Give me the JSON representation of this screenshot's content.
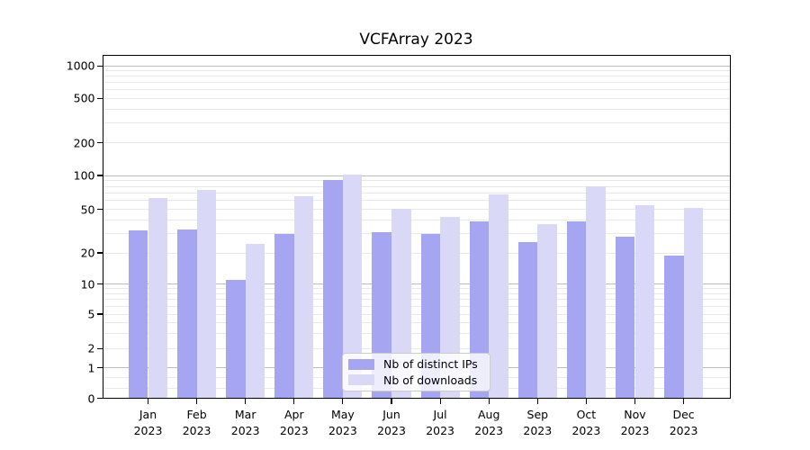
{
  "chart_data": {
    "type": "bar",
    "title": "VCFArray 2023",
    "categories": [
      "Jan 2023",
      "Feb 2023",
      "Mar 2023",
      "Apr 2023",
      "May 2023",
      "Jun 2023",
      "Jul 2023",
      "Aug 2023",
      "Sep 2023",
      "Oct 2023",
      "Nov 2023",
      "Dec 2023"
    ],
    "series": [
      {
        "name": "Nb of distinct IPs",
        "color": "#a5a5f1",
        "values": [
          32,
          33,
          11,
          30,
          91,
          31,
          30,
          39,
          25,
          39,
          28,
          19
        ]
      },
      {
        "name": "Nb of downloads",
        "color": "#d9d9f7",
        "values": [
          63,
          74,
          24,
          65,
          102,
          51,
          43,
          68,
          37,
          80,
          55,
          52
        ]
      }
    ],
    "yscale": "symlog",
    "yticks": [
      0,
      1,
      2,
      5,
      10,
      20,
      50,
      100,
      200,
      500,
      1000
    ],
    "ylim": [
      0,
      1200
    ],
    "xlabel": "",
    "ylabel": "",
    "grid": true,
    "legend_position": "lower center",
    "colors": {
      "major_grid": "#bdbdbd",
      "minor_grid": "#e8e8e8",
      "axis": "#000000",
      "background": "#ffffff"
    }
  }
}
